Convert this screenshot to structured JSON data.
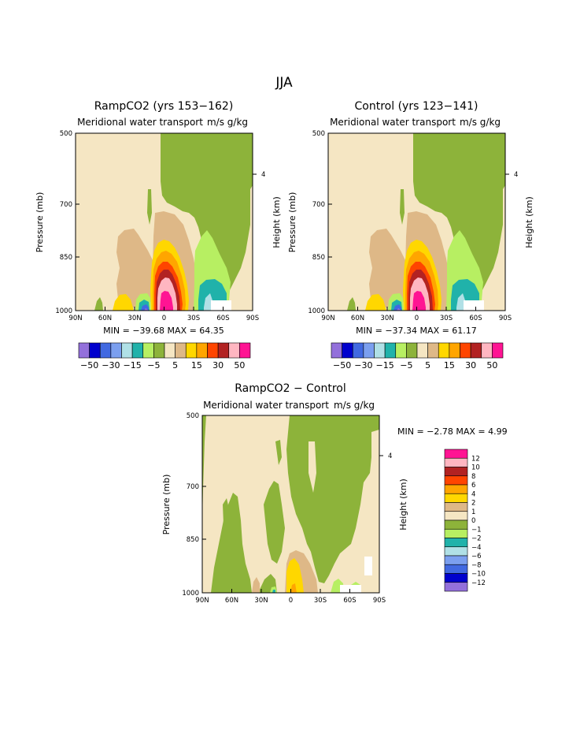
{
  "page_title": "JJA",
  "colors": {
    "m50": "#9370db",
    "m40": "#0000cd",
    "m30": "#4169e1",
    "m20": "#7b9fef",
    "m15": "#b0e0e6",
    "m10": "#20b2aa",
    "m5": "#b7ef62",
    "n0": "#8db33a",
    "p0": "#f5e6c3",
    "p5": "#deb887",
    "p10": "#ffd700",
    "p15": "#ffa500",
    "p20": "#ff4500",
    "p30": "#b22222",
    "p40": "#ffb6c1",
    "p50": "#ff1493"
  },
  "chart_data": [
    {
      "type": "heatmap",
      "id": "ramp",
      "title": "RampCO2 (yrs 153−162)",
      "subtitle": "Meridional water transport",
      "units": "m/s g/kg",
      "ylabel": "Pressure (mb)",
      "ylabel_right": "Height (km)",
      "right_tick": "4",
      "x_ticks": [
        "90N",
        "60N",
        "30N",
        "0",
        "30S",
        "60S",
        "90S"
      ],
      "y_ticks": [
        "500",
        "700",
        "850",
        "1000"
      ],
      "min_max": "MIN = −39.68   MAX =  64.35",
      "colorbar_labels": [
        "−50",
        "−30",
        "−15",
        "−5",
        "5",
        "15",
        "30",
        "50"
      ]
    },
    {
      "type": "heatmap",
      "id": "ctrl",
      "title": "Control (yrs 123−141)",
      "subtitle": "Meridional water transport",
      "units": "m/s g/kg",
      "ylabel": "Pressure (mb)",
      "ylabel_right": "Height (km)",
      "right_tick": "4",
      "x_ticks": [
        "90N",
        "60N",
        "30N",
        "0",
        "30S",
        "60S",
        "90S"
      ],
      "y_ticks": [
        "500",
        "700",
        "850",
        "1000"
      ],
      "min_max": "MIN = −37.34   MAX =  61.17",
      "colorbar_labels": [
        "−50",
        "−30",
        "−15",
        "−5",
        "5",
        "15",
        "30",
        "50"
      ]
    },
    {
      "type": "heatmap",
      "id": "diff",
      "title": "RampCO2 − Control",
      "subtitle": "Meridional water transport",
      "units": "m/s g/kg",
      "ylabel": "Pressure (mb)",
      "ylabel_right": "Height (km)",
      "right_tick": "4",
      "x_ticks": [
        "90N",
        "60N",
        "30N",
        "0",
        "30S",
        "60S",
        "90S"
      ],
      "y_ticks": [
        "500",
        "700",
        "850",
        "1000"
      ],
      "min_max": "MIN =   −2.78   MAX =    4.99",
      "colorbar_labels": [
        "12",
        "10",
        "8",
        "6",
        "4",
        "2",
        "1",
        "0",
        "−1",
        "−2",
        "−4",
        "−6",
        "−8",
        "−10",
        "−12"
      ]
    }
  ]
}
